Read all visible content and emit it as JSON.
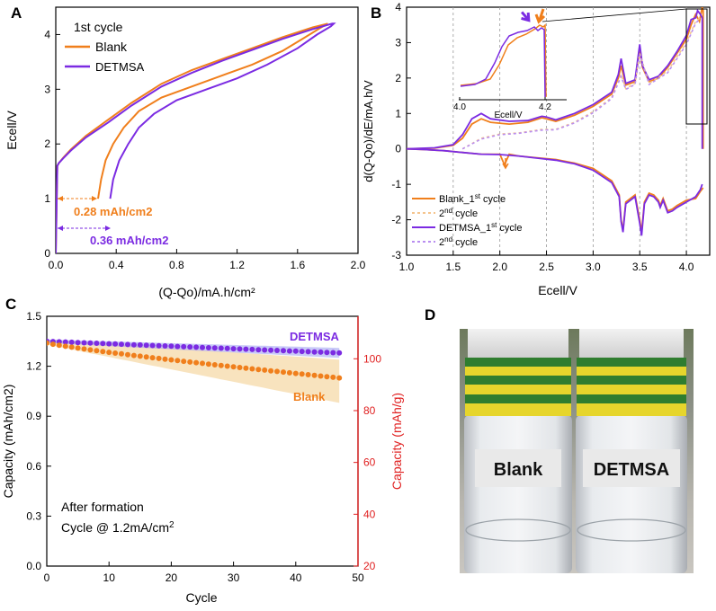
{
  "colors": {
    "blank": "#f07f1c",
    "detmsa": "#7b2be2",
    "red_axis": "#e02020",
    "blank_light": "#f5c58e",
    "detmsa_light": "#b98ef0"
  },
  "panel_labels": {
    "a": "A",
    "b": "B",
    "c": "C",
    "d": "D"
  },
  "chart_data": [
    {
      "id": "A",
      "type": "line",
      "title": "1st cycle",
      "xlabel": "(Q-Qo)/mA.h/cm²",
      "ylabel": "Ecell/V",
      "xlim": [
        0,
        2.0
      ],
      "ylim": [
        0,
        4.5
      ],
      "xticks": [
        "0.0",
        "0.4",
        "0.8",
        "1.2",
        "1.6",
        "2.0"
      ],
      "yticks": [
        "0",
        "1",
        "2",
        "3",
        "4"
      ],
      "legend": [
        "Blank",
        "DETMSA"
      ],
      "annotations": [
        "0.28 mAh/cm2",
        "0.36 mAh/cm2"
      ],
      "series": [
        {
          "name": "Blank",
          "color": "blank",
          "x": [
            0.28,
            0.3,
            0.33,
            0.38,
            0.45,
            0.55,
            0.7,
            0.9,
            1.1,
            1.3,
            1.5,
            1.65,
            1.75,
            1.8,
            1.8,
            1.7,
            1.5,
            1.3,
            1.1,
            0.9,
            0.7,
            0.5,
            0.35,
            0.2,
            0.1,
            0.05,
            0.02,
            0.01,
            0.0
          ],
          "y": [
            1.0,
            1.35,
            1.7,
            2.0,
            2.3,
            2.6,
            2.85,
            3.05,
            3.25,
            3.45,
            3.7,
            3.95,
            4.12,
            4.2,
            4.2,
            4.13,
            3.95,
            3.75,
            3.55,
            3.35,
            3.1,
            2.75,
            2.45,
            2.15,
            1.9,
            1.75,
            1.65,
            1.6,
            0.0
          ]
        },
        {
          "name": "DETMSA",
          "color": "detmsa",
          "x": [
            0.36,
            0.38,
            0.42,
            0.48,
            0.55,
            0.65,
            0.8,
            1.0,
            1.2,
            1.4,
            1.6,
            1.73,
            1.82,
            1.84,
            1.83,
            1.7,
            1.5,
            1.3,
            1.1,
            0.9,
            0.7,
            0.5,
            0.35,
            0.2,
            0.1,
            0.05,
            0.02,
            0.01,
            0.0
          ],
          "y": [
            1.0,
            1.35,
            1.7,
            2.0,
            2.3,
            2.55,
            2.8,
            3.0,
            3.2,
            3.45,
            3.75,
            4.0,
            4.15,
            4.2,
            4.2,
            4.1,
            3.92,
            3.72,
            3.52,
            3.3,
            3.05,
            2.7,
            2.4,
            2.12,
            1.88,
            1.74,
            1.65,
            1.6,
            0.0
          ]
        }
      ]
    },
    {
      "id": "B",
      "type": "line",
      "xlabel": "Ecell/V",
      "ylabel": "d(Q-Qo)/dE/mA.h/V",
      "xlim": [
        1.0,
        4.25
      ],
      "ylim": [
        -3,
        4
      ],
      "xticks": [
        "1.0",
        "1.5",
        "2.0",
        "2.5",
        "3.0",
        "3.5",
        "4.0"
      ],
      "yticks": [
        "-3",
        "-2",
        "-1",
        "0",
        "1",
        "2",
        "3",
        "4"
      ],
      "legend": [
        "Blank_1st cycle",
        "2nd cycle",
        "DETMSA_1st cycle",
        "2nd cycle"
      ],
      "inset": {
        "xlabel": "Ecell/V",
        "xticks": [
          "4.0",
          "4.2"
        ],
        "xlim": [
          4.0,
          4.25
        ]
      },
      "series": [
        {
          "name": "Blank_1st cycle",
          "color": "blank",
          "dash": false,
          "x": [
            1.0,
            1.3,
            1.5,
            1.6,
            1.7,
            1.8,
            1.9,
            2.1,
            2.3,
            2.45,
            2.5,
            2.6,
            2.8,
            3.0,
            3.2,
            3.27,
            3.3,
            3.35,
            3.45,
            3.5,
            3.53,
            3.6,
            3.7,
            3.8,
            3.9,
            4.0,
            4.05,
            4.1,
            4.14,
            4.17,
            4.18,
            4.18
          ],
          "y": [
            0,
            0.02,
            0.1,
            0.3,
            0.7,
            0.85,
            0.75,
            0.7,
            0.75,
            0.88,
            0.85,
            0.78,
            0.95,
            1.2,
            1.55,
            2.0,
            2.35,
            1.8,
            1.9,
            2.8,
            2.3,
            1.9,
            2.0,
            2.3,
            2.7,
            3.1,
            3.5,
            3.8,
            3.6,
            4.0,
            3.9,
            0
          ]
        },
        {
          "name": "DETMSA_1st cycle",
          "color": "detmsa",
          "dash": false,
          "x": [
            1.0,
            1.3,
            1.5,
            1.6,
            1.7,
            1.8,
            1.9,
            2.1,
            2.3,
            2.45,
            2.5,
            2.6,
            2.8,
            3.0,
            3.2,
            3.27,
            3.3,
            3.35,
            3.45,
            3.5,
            3.53,
            3.6,
            3.7,
            3.8,
            3.9,
            4.0,
            4.05,
            4.1,
            4.12,
            4.15,
            4.17,
            4.17
          ],
          "y": [
            0,
            0.03,
            0.12,
            0.4,
            0.85,
            1.0,
            0.85,
            0.78,
            0.8,
            0.92,
            0.9,
            0.82,
            1.0,
            1.25,
            1.6,
            2.1,
            2.55,
            1.85,
            1.95,
            2.95,
            2.35,
            1.95,
            2.05,
            2.35,
            2.75,
            3.2,
            3.65,
            3.7,
            3.9,
            3.8,
            3.7,
            0
          ]
        },
        {
          "name": "Blank_2nd cycle",
          "color": "blank_light",
          "dash": true,
          "x": [
            1.6,
            1.8,
            2.0,
            2.2,
            2.45,
            2.6,
            2.8,
            3.0,
            3.2,
            3.3,
            3.35,
            3.45,
            3.5,
            3.6,
            3.8,
            4.0,
            4.1,
            4.15
          ],
          "y": [
            0,
            0.3,
            0.42,
            0.45,
            0.55,
            0.55,
            0.75,
            1.05,
            1.45,
            2.1,
            1.7,
            1.85,
            2.7,
            1.85,
            2.2,
            3.0,
            3.6,
            3.7
          ]
        },
        {
          "name": "DETMSA_2nd cycle",
          "color": "detmsa_light",
          "dash": true,
          "x": [
            1.6,
            1.8,
            2.0,
            2.2,
            2.45,
            2.6,
            2.8,
            3.0,
            3.2,
            3.3,
            3.35,
            3.45,
            3.5,
            3.6,
            3.8,
            4.0,
            4.1,
            4.15
          ],
          "y": [
            0,
            0.28,
            0.4,
            0.44,
            0.53,
            0.54,
            0.73,
            1.02,
            1.42,
            2.05,
            1.68,
            1.82,
            2.65,
            1.82,
            2.15,
            2.95,
            3.55,
            3.68
          ]
        },
        {
          "name": "Blank_1st_reduction",
          "color": "blank",
          "dash": false,
          "x": [
            4.18,
            4.15,
            4.1,
            4.0,
            3.9,
            3.85,
            3.8,
            3.75,
            3.72,
            3.7,
            3.65,
            3.6,
            3.55,
            3.52,
            3.5,
            3.45,
            3.35,
            3.32,
            3.3,
            3.28,
            3.2,
            3.0,
            2.8,
            2.6,
            2.4,
            2.2,
            2.1,
            2.05,
            2.0,
            1.8,
            1.6,
            1.4,
            1.2,
            1.0
          ],
          "y": [
            -1.1,
            -1.2,
            -1.4,
            -1.45,
            -1.6,
            -1.7,
            -1.75,
            -1.4,
            -1.6,
            -1.45,
            -1.3,
            -1.25,
            -1.5,
            -2.35,
            -2.0,
            -1.3,
            -1.5,
            -2.3,
            -2.0,
            -1.3,
            -0.9,
            -0.55,
            -0.4,
            -0.3,
            -0.25,
            -0.2,
            -0.15,
            -0.45,
            -0.15,
            -0.15,
            -0.1,
            -0.05,
            -0.02,
            0
          ]
        },
        {
          "name": "DETMSA_1st_reduction",
          "color": "detmsa",
          "dash": false,
          "x": [
            4.17,
            4.15,
            4.1,
            4.0,
            3.9,
            3.85,
            3.8,
            3.75,
            3.72,
            3.7,
            3.65,
            3.6,
            3.55,
            3.52,
            3.5,
            3.45,
            3.35,
            3.32,
            3.3,
            3.28,
            3.2,
            3.0,
            2.8,
            2.6,
            2.4,
            2.2,
            2.0,
            1.8,
            1.6,
            1.4,
            1.2,
            1.0
          ],
          "y": [
            -1.0,
            -1.15,
            -1.35,
            -1.5,
            -1.65,
            -1.75,
            -1.8,
            -1.45,
            -1.65,
            -1.5,
            -1.35,
            -1.3,
            -1.55,
            -2.45,
            -2.1,
            -1.35,
            -1.55,
            -2.35,
            -2.05,
            -1.35,
            -0.95,
            -0.6,
            -0.42,
            -0.32,
            -0.26,
            -0.2,
            -0.16,
            -0.15,
            -0.1,
            -0.05,
            -0.02,
            0
          ]
        }
      ]
    },
    {
      "id": "C",
      "type": "scatter",
      "xlabel": "Cycle",
      "ylabel": "Capacity (mAh/cm2)",
      "y2label": "Capacity (mAh/g)",
      "xlim": [
        0,
        50
      ],
      "ylim": [
        0.0,
        1.5
      ],
      "y2lim": [
        20,
        116.4
      ],
      "xticks": [
        "0",
        "10",
        "20",
        "30",
        "40",
        "50"
      ],
      "yticks": [
        "0.0",
        "0.3",
        "0.6",
        "0.9",
        "1.2",
        "1.5"
      ],
      "y2ticks": [
        "20",
        "40",
        "60",
        "80",
        "100"
      ],
      "legend": [
        "DETMSA",
        "Blank"
      ],
      "annotations": [
        "After formation",
        "Cycle @ 1.2mA/cm²"
      ],
      "series": [
        {
          "name": "DETMSA",
          "color": "detmsa",
          "band_color": "#9a9cf0",
          "y_start": 1.35,
          "y_end": 1.28,
          "band_halfwidth_start": 0.01,
          "band_halfwidth_end": 0.03
        },
        {
          "name": "Blank",
          "color": "blank",
          "band_color": "#f5d9a8",
          "y_start": 1.34,
          "y_end": 1.13,
          "band_lower_start": 1.33,
          "band_lower_end": 0.98,
          "band_upper_start": 1.36,
          "band_upper_end": 1.24
        }
      ],
      "cycles": 47
    }
  ],
  "photo": {
    "caption": "Two glass vials with yellow and green striped caps containing clear electrolyte",
    "labels": [
      "Blank",
      "DETMSA"
    ]
  }
}
